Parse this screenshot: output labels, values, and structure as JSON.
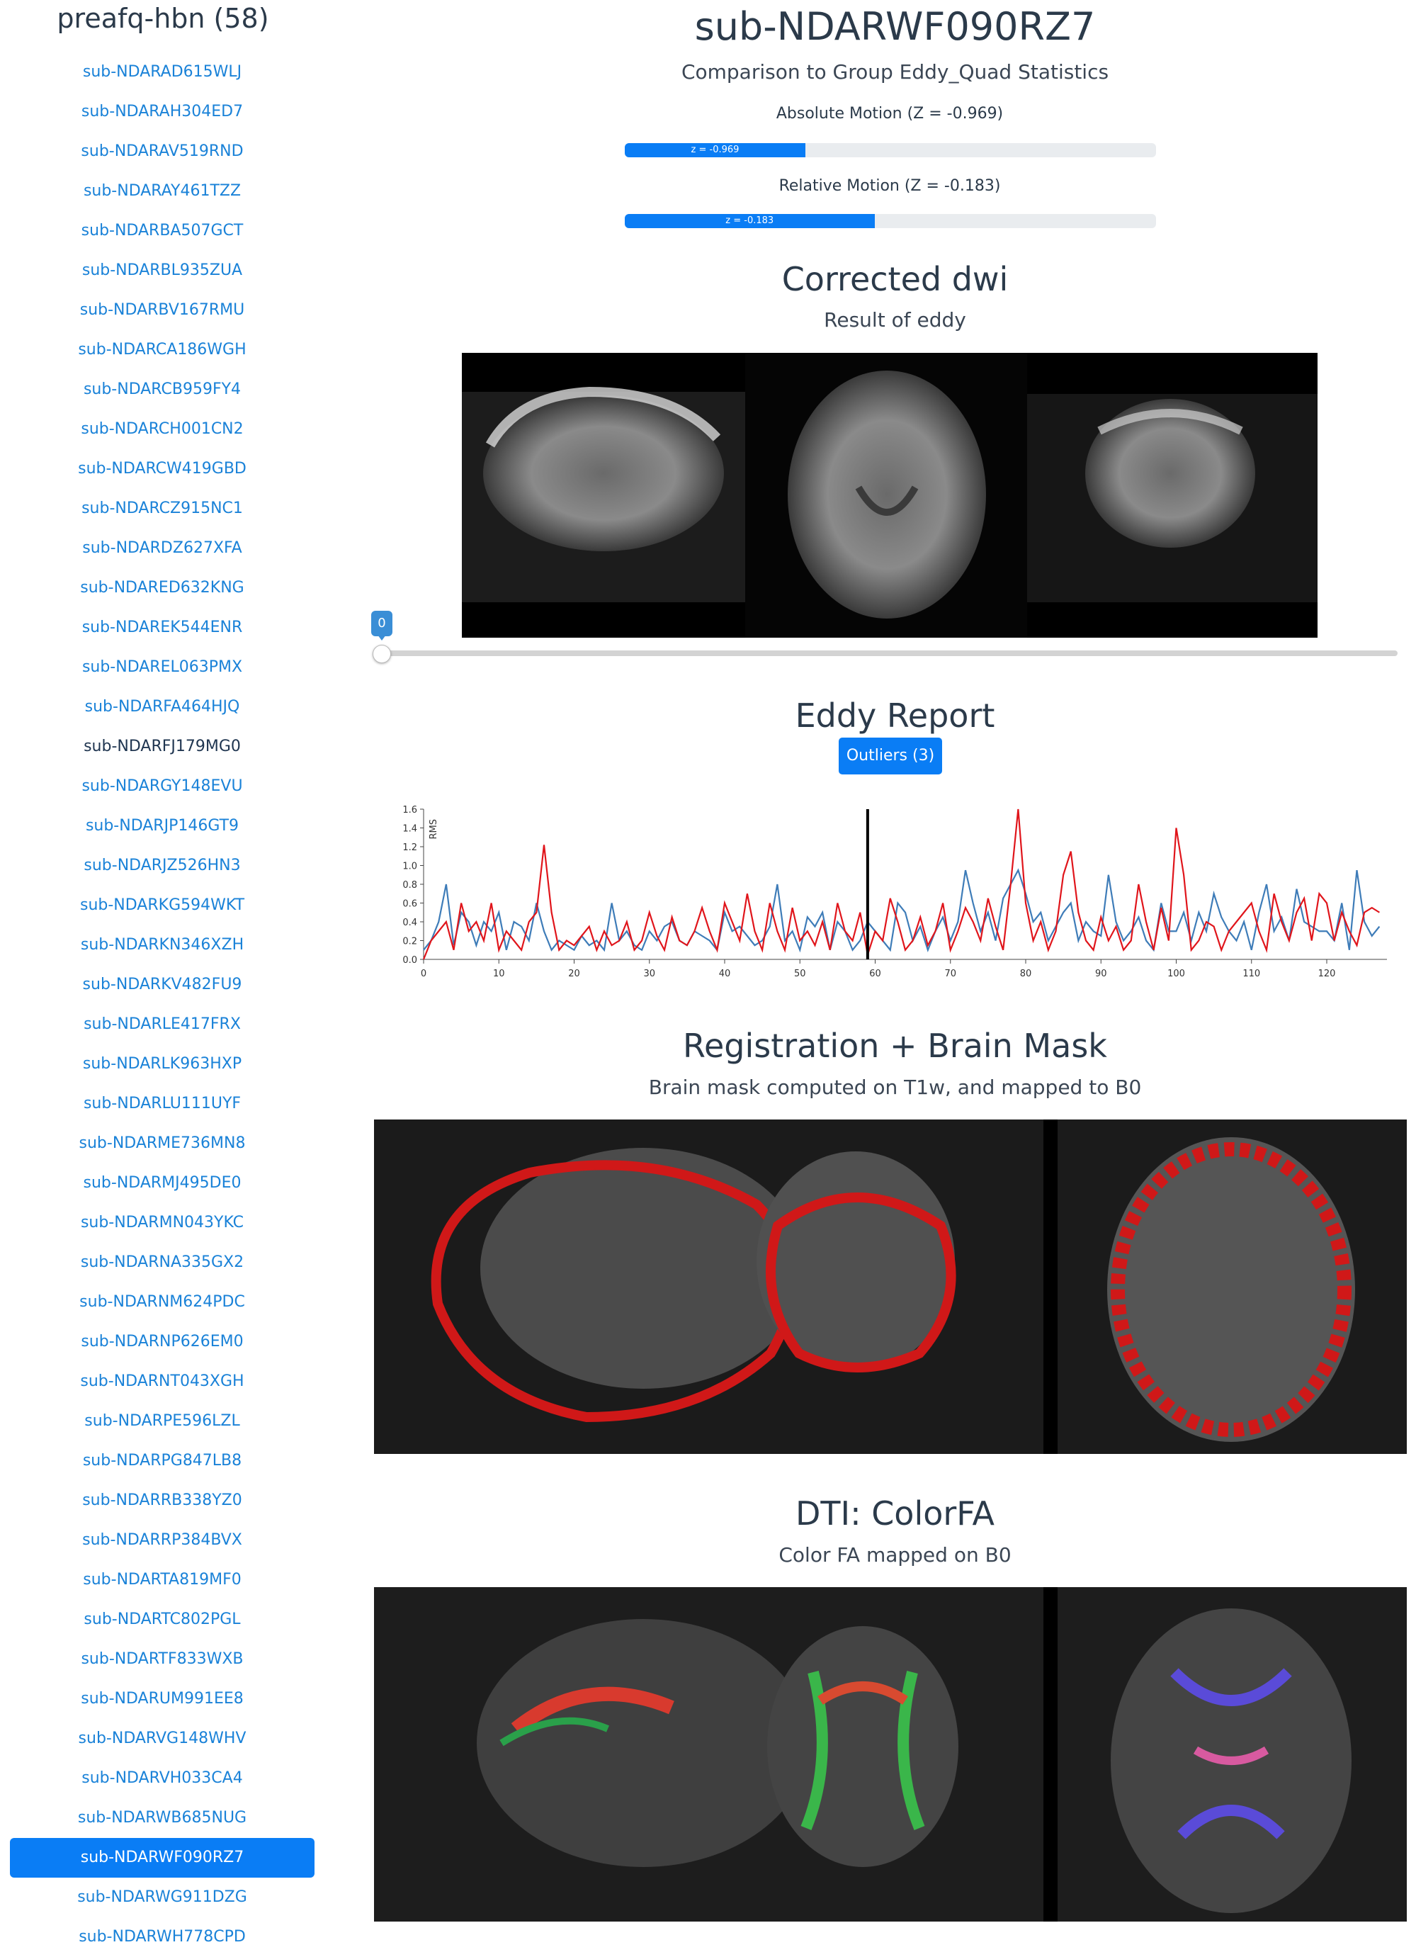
{
  "sidebar": {
    "title": "preafq-hbn (58)",
    "items": [
      {
        "label": "sub-NDARAD615WLJ",
        "state": "normal"
      },
      {
        "label": "sub-NDARAH304ED7",
        "state": "normal"
      },
      {
        "label": "sub-NDARAV519RND",
        "state": "normal"
      },
      {
        "label": "sub-NDARAY461TZZ",
        "state": "normal"
      },
      {
        "label": "sub-NDARBA507GCT",
        "state": "normal"
      },
      {
        "label": "sub-NDARBL935ZUA",
        "state": "normal"
      },
      {
        "label": "sub-NDARBV167RMU",
        "state": "normal"
      },
      {
        "label": "sub-NDARCA186WGH",
        "state": "normal"
      },
      {
        "label": "sub-NDARCB959FY4",
        "state": "normal"
      },
      {
        "label": "sub-NDARCH001CN2",
        "state": "normal"
      },
      {
        "label": "sub-NDARCW419GBD",
        "state": "normal"
      },
      {
        "label": "sub-NDARCZ915NC1",
        "state": "normal"
      },
      {
        "label": "sub-NDARDZ627XFA",
        "state": "normal"
      },
      {
        "label": "sub-NDARED632KNG",
        "state": "normal"
      },
      {
        "label": "sub-NDAREK544ENR",
        "state": "normal"
      },
      {
        "label": "sub-NDAREL063PMX",
        "state": "normal"
      },
      {
        "label": "sub-NDARFA464HJQ",
        "state": "normal"
      },
      {
        "label": "sub-NDARFJ179MG0",
        "state": "visited"
      },
      {
        "label": "sub-NDARGY148EVU",
        "state": "normal"
      },
      {
        "label": "sub-NDARJP146GT9",
        "state": "normal"
      },
      {
        "label": "sub-NDARJZ526HN3",
        "state": "normal"
      },
      {
        "label": "sub-NDARKG594WKT",
        "state": "normal"
      },
      {
        "label": "sub-NDARKN346XZH",
        "state": "normal"
      },
      {
        "label": "sub-NDARKV482FU9",
        "state": "normal"
      },
      {
        "label": "sub-NDARLE417FRX",
        "state": "normal"
      },
      {
        "label": "sub-NDARLK963HXP",
        "state": "normal"
      },
      {
        "label": "sub-NDARLU111UYF",
        "state": "normal"
      },
      {
        "label": "sub-NDARME736MN8",
        "state": "normal"
      },
      {
        "label": "sub-NDARMJ495DE0",
        "state": "normal"
      },
      {
        "label": "sub-NDARMN043YKC",
        "state": "normal"
      },
      {
        "label": "sub-NDARNA335GX2",
        "state": "normal"
      },
      {
        "label": "sub-NDARNM624PDC",
        "state": "normal"
      },
      {
        "label": "sub-NDARNP626EM0",
        "state": "normal"
      },
      {
        "label": "sub-NDARNT043XGH",
        "state": "normal"
      },
      {
        "label": "sub-NDARPE596LZL",
        "state": "normal"
      },
      {
        "label": "sub-NDARPG847LB8",
        "state": "normal"
      },
      {
        "label": "sub-NDARRB338YZ0",
        "state": "normal"
      },
      {
        "label": "sub-NDARRP384BVX",
        "state": "normal"
      },
      {
        "label": "sub-NDARTA819MF0",
        "state": "normal"
      },
      {
        "label": "sub-NDARTC802PGL",
        "state": "normal"
      },
      {
        "label": "sub-NDARTF833WXB",
        "state": "normal"
      },
      {
        "label": "sub-NDARUM991EE8",
        "state": "normal"
      },
      {
        "label": "sub-NDARVG148WHV",
        "state": "normal"
      },
      {
        "label": "sub-NDARVH033CA4",
        "state": "normal"
      },
      {
        "label": "sub-NDARWB685NUG",
        "state": "normal"
      },
      {
        "label": "sub-NDARWF090RZ7",
        "state": "active"
      },
      {
        "label": "sub-NDARWG911DZG",
        "state": "normal"
      },
      {
        "label": "sub-NDARWH778CPD",
        "state": "normal"
      }
    ]
  },
  "header": {
    "subject": "sub-NDARWF090RZ7",
    "subtitle": "Comparison to Group Eddy_Quad Statistics"
  },
  "motion": {
    "absolute": {
      "label": "Absolute Motion (Z = -0.969)",
      "bar_text": "z = -0.969",
      "fill_fraction": 0.34
    },
    "relative": {
      "label": "Relative Motion (Z = -0.183)",
      "bar_text": "z = -0.183",
      "fill_fraction": 0.47
    }
  },
  "corrected_dwi": {
    "title": "Corrected dwi",
    "subtitle": "Result of eddy",
    "slider_value": "0",
    "slider_fraction": 0.0
  },
  "eddy_report": {
    "title": "Eddy Report",
    "outliers_button": "Outliers (3)"
  },
  "registration": {
    "title": "Registration + Brain Mask",
    "subtitle": "Brain mask computed on T1w, and mapped to B0"
  },
  "dti": {
    "title": "DTI: ColorFA",
    "subtitle": "Color FA mapped on B0"
  },
  "colors": {
    "accent": "#0a7df5",
    "link": "#1a82d8",
    "series_red": "#e0151b",
    "series_blue": "#3e7cb8",
    "mask_red": "#d01818"
  },
  "chart_data": {
    "type": "line",
    "ylabel": "RMS",
    "ylim": [
      0,
      1.6
    ],
    "xlim": [
      0,
      128
    ],
    "xticks": [
      0,
      10,
      20,
      30,
      40,
      50,
      60,
      70,
      80,
      90,
      100,
      110,
      120
    ],
    "yticks": [
      "0.0",
      "0.2",
      "0.4",
      "0.6",
      "0.8",
      "1.0",
      "1.2",
      "1.4",
      "1.6"
    ],
    "marker_x": 59,
    "series": [
      {
        "color": "red",
        "values": [
          0.0,
          0.2,
          0.3,
          0.4,
          0.1,
          0.6,
          0.3,
          0.4,
          0.2,
          0.6,
          0.1,
          0.3,
          0.2,
          0.1,
          0.4,
          0.5,
          1.22,
          0.5,
          0.1,
          0.2,
          0.15,
          0.25,
          0.35,
          0.1,
          0.3,
          0.15,
          0.2,
          0.4,
          0.1,
          0.2,
          0.5,
          0.25,
          0.1,
          0.45,
          0.2,
          0.15,
          0.3,
          0.55,
          0.3,
          0.1,
          0.6,
          0.4,
          0.2,
          0.7,
          0.3,
          0.1,
          0.6,
          0.3,
          0.1,
          0.55,
          0.2,
          0.3,
          0.15,
          0.4,
          0.1,
          0.6,
          0.3,
          0.2,
          0.5,
          0.05,
          0.3,
          0.2,
          0.65,
          0.4,
          0.1,
          0.2,
          0.45,
          0.15,
          0.3,
          0.6,
          0.1,
          0.3,
          0.55,
          0.4,
          0.2,
          0.65,
          0.35,
          0.1,
          0.8,
          1.6,
          0.6,
          0.2,
          0.4,
          0.1,
          0.3,
          0.9,
          1.15,
          0.5,
          0.2,
          0.1,
          0.45,
          0.2,
          0.35,
          0.1,
          0.2,
          0.8,
          0.4,
          0.1,
          0.55,
          0.2,
          1.4,
          0.9,
          0.1,
          0.2,
          0.4,
          0.35,
          0.1,
          0.3,
          0.4,
          0.5,
          0.6,
          0.3,
          0.1,
          0.7,
          0.4,
          0.2,
          0.5,
          0.65,
          0.2,
          0.7,
          0.6,
          0.2,
          0.5,
          0.3,
          0.15,
          0.5,
          0.55,
          0.5
        ]
      },
      {
        "color": "blue",
        "values": [
          0.1,
          0.2,
          0.4,
          0.8,
          0.15,
          0.5,
          0.4,
          0.15,
          0.4,
          0.3,
          0.5,
          0.1,
          0.4,
          0.35,
          0.2,
          0.6,
          0.3,
          0.1,
          0.2,
          0.15,
          0.1,
          0.25,
          0.15,
          0.2,
          0.1,
          0.6,
          0.2,
          0.3,
          0.15,
          0.1,
          0.3,
          0.2,
          0.35,
          0.4,
          0.2,
          0.15,
          0.3,
          0.25,
          0.2,
          0.1,
          0.5,
          0.3,
          0.35,
          0.25,
          0.15,
          0.2,
          0.35,
          0.8,
          0.2,
          0.3,
          0.1,
          0.45,
          0.35,
          0.5,
          0.1,
          0.4,
          0.3,
          0.1,
          0.2,
          0.4,
          0.3,
          0.2,
          0.1,
          0.6,
          0.5,
          0.2,
          0.35,
          0.1,
          0.3,
          0.45,
          0.2,
          0.4,
          0.95,
          0.6,
          0.3,
          0.5,
          0.2,
          0.65,
          0.8,
          0.95,
          0.7,
          0.4,
          0.5,
          0.2,
          0.35,
          0.5,
          0.6,
          0.2,
          0.4,
          0.3,
          0.25,
          0.9,
          0.4,
          0.2,
          0.3,
          0.45,
          0.2,
          0.1,
          0.6,
          0.3,
          0.3,
          0.5,
          0.2,
          0.5,
          0.3,
          0.7,
          0.45,
          0.3,
          0.2,
          0.4,
          0.1,
          0.5,
          0.8,
          0.3,
          0.45,
          0.2,
          0.75,
          0.4,
          0.35,
          0.3,
          0.3,
          0.2,
          0.6,
          0.1,
          0.95,
          0.4,
          0.25,
          0.35
        ]
      }
    ]
  }
}
